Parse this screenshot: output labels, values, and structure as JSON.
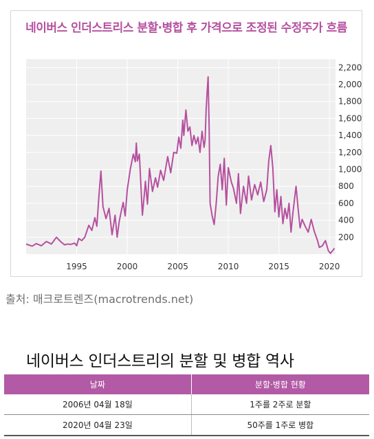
{
  "chart_data": {
    "type": "line",
    "title": "네이버스 인더스트리스 분할·병합 후 가격으로 조정된 수정주가 흐름",
    "xlabel": "",
    "ylabel": "",
    "xlim": [
      1990.0,
      2020.6
    ],
    "ylim": [
      0,
      2300
    ],
    "x_ticks": [
      1995,
      2000,
      2005,
      2010,
      2015,
      2020
    ],
    "y_ticks": [
      200,
      400,
      600,
      800,
      1000,
      1200,
      1400,
      1600,
      1800,
      2000,
      2200
    ],
    "y_tick_labels": [
      "200",
      "400",
      "600",
      "800",
      "1,000",
      "1,200",
      "1,400",
      "1,600",
      "1,800",
      "2,000",
      "2,200"
    ],
    "grid": true,
    "line_color": "#b5509f",
    "series": [
      {
        "x": [
          1990.0,
          1990.6,
          1991.0,
          1991.5,
          1992.0,
          1992.5,
          1993.0,
          1993.4,
          1993.8,
          1994.1,
          1994.4,
          1994.8,
          1995.0,
          1995.2,
          1995.5,
          1995.8,
          1996.2,
          1996.5,
          1996.8,
          1997.0,
          1997.2,
          1997.4,
          1997.6,
          1997.9,
          1998.2,
          1998.5,
          1998.8,
          1999.0,
          1999.2,
          1999.4,
          1999.6,
          1999.8,
          2000.0,
          2000.3,
          2000.6,
          2000.8,
          2000.9,
          2001.0,
          2001.2,
          2001.5,
          2001.7,
          2001.8,
          2002.0,
          2002.2,
          2002.5,
          2002.8,
          2003.0,
          2003.3,
          2003.6,
          2004.0,
          2004.3,
          2004.6,
          2004.9,
          2005.1,
          2005.3,
          2005.5,
          2005.6,
          2005.8,
          2006.0,
          2006.2,
          2006.4,
          2006.6,
          2006.8,
          2007.0,
          2007.2,
          2007.4,
          2007.6,
          2007.7,
          2007.8,
          2007.9,
          2008.0,
          2008.1,
          2008.2,
          2008.4,
          2008.6,
          2008.8,
          2009.0,
          2009.2,
          2009.4,
          2009.6,
          2009.8,
          2010.0,
          2010.3,
          2010.5,
          2010.8,
          2011.0,
          2011.2,
          2011.5,
          2011.8,
          2012.0,
          2012.3,
          2012.6,
          2012.9,
          2013.2,
          2013.5,
          2013.8,
          2014.0,
          2014.2,
          2014.4,
          2014.6,
          2014.8,
          2015.0,
          2015.2,
          2015.4,
          2015.6,
          2015.8,
          2016.0,
          2016.2,
          2016.4,
          2016.7,
          2016.9,
          2017.1,
          2017.3,
          2017.6,
          2017.9,
          2018.2,
          2018.5,
          2018.8,
          2019.0,
          2019.3,
          2019.6,
          2019.9,
          2020.1,
          2020.3,
          2020.5
        ],
        "y": [
          120,
          95,
          125,
          100,
          150,
          120,
          200,
          150,
          110,
          120,
          115,
          130,
          100,
          185,
          160,
          200,
          340,
          280,
          430,
          330,
          690,
          980,
          560,
          420,
          540,
          230,
          460,
          200,
          380,
          500,
          610,
          450,
          760,
          1000,
          1180,
          1090,
          1310,
          1100,
          1180,
          460,
          720,
          860,
          590,
          1010,
          740,
          900,
          790,
          990,
          870,
          1150,
          960,
          1200,
          1190,
          1380,
          1250,
          1580,
          1400,
          1700,
          1450,
          1500,
          1280,
          1400,
          1300,
          1380,
          1200,
          1450,
          1260,
          1340,
          1700,
          1900,
          2090,
          1500,
          600,
          450,
          350,
          600,
          920,
          1060,
          760,
          1130,
          580,
          1020,
          850,
          780,
          600,
          950,
          480,
          800,
          600,
          920,
          640,
          820,
          700,
          850,
          620,
          760,
          1100,
          1280,
          1020,
          500,
          760,
          440,
          680,
          360,
          540,
          420,
          600,
          260,
          500,
          800,
          540,
          310,
          410,
          330,
          260,
          410,
          270,
          170,
          80,
          100,
          160,
          40,
          10,
          40,
          70
        ]
      }
    ]
  },
  "source_text": "출처: 매크로트렌즈(macrotrends.net)",
  "table": {
    "title": "네이버스 인더스트리의 분할 및 병합 역사",
    "headers": [
      "날짜",
      "분할·병합 현황"
    ],
    "rows": [
      [
        "2006년 04월 18일",
        "1주를 2주로 분할"
      ],
      [
        "2020년 04월 23일",
        "50주를 1주로 병합"
      ]
    ]
  }
}
